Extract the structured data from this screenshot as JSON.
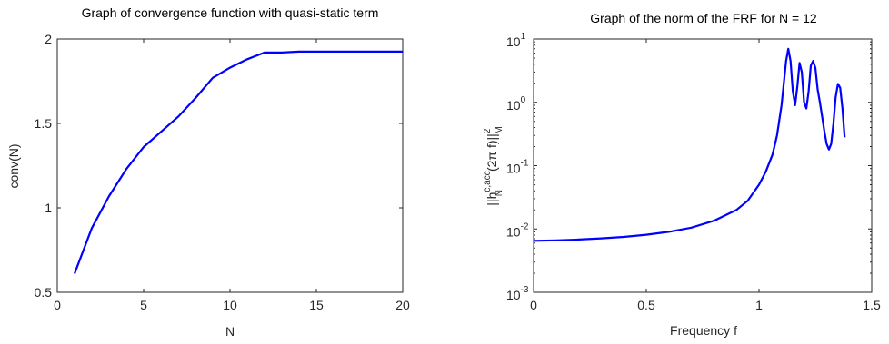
{
  "chart_data": [
    {
      "type": "line",
      "title": "Graph of convergence function with quasi-static term",
      "xlabel": "N",
      "ylabel": "conv(N)",
      "xlim": [
        0,
        20
      ],
      "ylim": [
        0.5,
        2
      ],
      "xticks": [
        0,
        5,
        10,
        15,
        20
      ],
      "yticks": [
        0.5,
        1,
        1.5,
        2
      ],
      "xtick_labels": [
        "0",
        "5",
        "10",
        "15",
        "20"
      ],
      "ytick_labels": [
        "0.5",
        "1",
        "1.5",
        "2"
      ],
      "grid": false,
      "series": [
        {
          "color": "#0000ff",
          "x": [
            1,
            2,
            3,
            4,
            5,
            6,
            7,
            8,
            9,
            10,
            11,
            12,
            13,
            14,
            15,
            16,
            17,
            18,
            19,
            20
          ],
          "y": [
            0.61,
            0.88,
            1.07,
            1.23,
            1.36,
            1.45,
            1.54,
            1.65,
            1.77,
            1.83,
            1.88,
            1.92,
            1.92,
            1.925,
            1.925,
            1.925,
            1.925,
            1.925,
            1.925,
            1.925
          ]
        }
      ]
    },
    {
      "type": "line",
      "title": "Graph of the norm of the FRF for N = 12",
      "xlabel": "Frequency f",
      "ylabel": "||h_N^{c,acc}(2π f)||_M^2",
      "ylabel_parts": {
        "main": "||h",
        "sup": "c,acc",
        "sub": "N",
        "mid": "(2π f)||",
        "sup2": "2",
        "sub2": "M"
      },
      "xlim": [
        0,
        1.5
      ],
      "ylim": [
        0.001,
        10
      ],
      "yscale": "log",
      "xticks": [
        0,
        0.5,
        1,
        1.5
      ],
      "xtick_labels": [
        "0",
        "0.5",
        "1",
        "1.5"
      ],
      "yticks": [
        0.001,
        0.01,
        0.1,
        1,
        10
      ],
      "ytick_labels": [
        {
          "base": "10",
          "exp": "-3"
        },
        {
          "base": "10",
          "exp": "-2"
        },
        {
          "base": "10",
          "exp": "-1"
        },
        {
          "base": "10",
          "exp": "0"
        },
        {
          "base": "10",
          "exp": "1"
        }
      ],
      "grid": false,
      "series": [
        {
          "color": "#0000ff",
          "x": [
            0,
            0.1,
            0.2,
            0.3,
            0.4,
            0.5,
            0.6,
            0.7,
            0.8,
            0.9,
            0.95,
            1.0,
            1.03,
            1.06,
            1.08,
            1.1,
            1.12,
            1.13,
            1.14,
            1.15,
            1.16,
            1.17,
            1.18,
            1.19,
            1.2,
            1.21,
            1.22,
            1.23,
            1.24,
            1.25,
            1.26,
            1.27,
            1.28,
            1.29,
            1.3,
            1.31,
            1.32,
            1.33,
            1.34,
            1.35,
            1.36,
            1.37,
            1.38
          ],
          "y": [
            0.0065,
            0.0066,
            0.0068,
            0.0071,
            0.0075,
            0.0081,
            0.009,
            0.0105,
            0.0135,
            0.02,
            0.028,
            0.05,
            0.08,
            0.15,
            0.3,
            0.9,
            4.5,
            7.0,
            4.5,
            1.5,
            0.9,
            1.8,
            4.2,
            3.0,
            1.0,
            0.8,
            1.5,
            3.8,
            4.5,
            3.5,
            1.6,
            1.0,
            0.6,
            0.35,
            0.22,
            0.18,
            0.22,
            0.45,
            1.2,
            1.95,
            1.7,
            0.8,
            0.28
          ]
        }
      ]
    }
  ]
}
